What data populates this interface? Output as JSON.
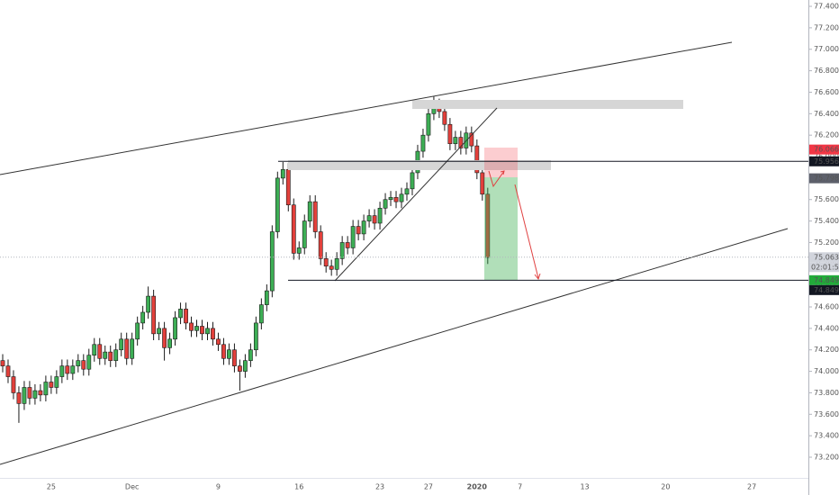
{
  "chart_data": {
    "type": "candlestick",
    "categories": [
      null,
      null,
      null,
      null,
      null,
      null,
      null,
      null,
      null,
      "25",
      null,
      null,
      null,
      null,
      null,
      null,
      null,
      null,
      null,
      null,
      null,
      null,
      null,
      null,
      "Dec",
      null,
      null,
      null,
      null,
      null,
      null,
      null,
      null,
      null,
      null,
      null,
      null,
      null,
      null,
      null,
      "9",
      null,
      null,
      null,
      null,
      null,
      null,
      null,
      null,
      null,
      null,
      null,
      null,
      null,
      null,
      "16",
      null,
      null,
      null,
      null,
      null,
      null,
      null,
      null,
      null,
      null,
      null,
      null,
      null,
      null,
      "23",
      null,
      null,
      null,
      null,
      null,
      null,
      null,
      null,
      "27",
      null,
      null,
      null,
      null,
      null,
      null,
      null,
      null,
      "2020",
      null,
      null,
      null,
      null,
      null,
      null,
      null,
      "7",
      null,
      null,
      null,
      null,
      null,
      null,
      null,
      null,
      null,
      null,
      null,
      "13",
      null,
      null,
      null,
      null,
      null,
      null,
      null,
      null,
      null,
      null,
      null,
      null,
      null,
      null,
      "20",
      null,
      null,
      null,
      null,
      null,
      null,
      null,
      null,
      null,
      null,
      null,
      null,
      null,
      null,
      null,
      "27",
      null,
      null,
      null,
      null,
      null,
      null,
      null,
      null,
      null,
      null
    ],
    "open": [
      74.1,
      74.05,
      73.95,
      73.8,
      73.7,
      73.85,
      73.75,
      73.82,
      73.78,
      73.9,
      73.85,
      73.95,
      74.05,
      73.98,
      74.05,
      74.1,
      74.02,
      74.15,
      74.25,
      74.12,
      74.18,
      74.1,
      74.2,
      74.3,
      74.12,
      74.3,
      74.45,
      74.55,
      74.7,
      74.35,
      74.4,
      74.22,
      74.3,
      74.5,
      74.58,
      74.45,
      74.38,
      74.42,
      74.35,
      74.4,
      74.3,
      74.25,
      74.12,
      74.2,
      74.05,
      74.0,
      74.1,
      74.2,
      74.45,
      74.62,
      74.75,
      75.3,
      75.8,
      75.88,
      75.55,
      75.1,
      75.15,
      75.4,
      75.58,
      75.3,
      75.05,
      74.98,
      74.95,
      75.05,
      75.2,
      75.15,
      75.35,
      75.28,
      75.4,
      75.45,
      75.38,
      75.52,
      75.6,
      75.62,
      75.58,
      75.65,
      75.7,
      75.85,
      76.05,
      76.2,
      76.4,
      76.48,
      76.42,
      76.3,
      76.12,
      76.18,
      76.08,
      76.22,
      76.1,
      75.85,
      75.65,
      null,
      null,
      null,
      null,
      null,
      null,
      null,
      null,
      null,
      null,
      null,
      null,
      null,
      null,
      null,
      null,
      null,
      null,
      null,
      null,
      null,
      null,
      null,
      null,
      null,
      null,
      null,
      null,
      null,
      null,
      null,
      null,
      null,
      null,
      null,
      null,
      null,
      null,
      null,
      null,
      null,
      null,
      null,
      null,
      null,
      null,
      null,
      null,
      null,
      null,
      null,
      null,
      null,
      null,
      null,
      null,
      null,
      null,
      null
    ],
    "high": [
      74.16,
      74.11,
      74.01,
      73.86,
      73.91,
      73.91,
      73.88,
      73.88,
      73.96,
      73.96,
      74.01,
      74.11,
      74.11,
      74.11,
      74.16,
      74.16,
      74.21,
      74.31,
      74.31,
      74.24,
      74.24,
      74.26,
      74.36,
      74.36,
      74.36,
      74.51,
      74.61,
      74.79,
      74.76,
      74.46,
      74.46,
      74.36,
      74.56,
      74.64,
      74.64,
      74.51,
      74.48,
      74.48,
      74.46,
      74.46,
      74.36,
      74.31,
      74.26,
      74.26,
      74.11,
      74.16,
      74.26,
      74.51,
      74.68,
      74.81,
      75.36,
      75.86,
      75.95,
      75.94,
      75.61,
      75.21,
      75.46,
      75.64,
      75.64,
      75.36,
      75.11,
      75.04,
      75.11,
      75.26,
      75.26,
      75.41,
      75.41,
      75.46,
      75.51,
      75.51,
      75.58,
      75.66,
      75.68,
      75.68,
      75.71,
      75.76,
      75.91,
      76.11,
      76.26,
      76.46,
      76.56,
      76.54,
      76.48,
      76.36,
      76.24,
      76.24,
      76.28,
      76.28,
      76.16,
      75.91,
      75.71,
      null,
      null,
      null,
      null,
      null,
      null,
      null,
      null,
      null,
      null,
      null,
      null,
      null,
      null,
      null,
      null,
      null,
      null,
      null,
      null,
      null,
      null,
      null,
      null,
      null,
      null,
      null,
      null,
      null,
      null,
      null,
      null,
      null,
      null,
      null,
      null,
      null,
      null,
      null,
      null,
      null,
      null,
      null,
      null,
      null,
      null,
      null,
      null,
      null,
      null,
      null,
      null,
      null,
      null,
      null,
      null,
      null,
      null,
      null
    ],
    "low": [
      73.99,
      73.89,
      73.74,
      73.52,
      73.64,
      73.69,
      73.69,
      73.72,
      73.72,
      73.79,
      73.79,
      73.89,
      73.92,
      73.92,
      73.99,
      73.96,
      73.96,
      74.09,
      74.06,
      74.06,
      74.04,
      74.04,
      74.14,
      74.06,
      74.06,
      74.24,
      74.39,
      74.49,
      74.29,
      74.29,
      74.1,
      74.16,
      74.24,
      74.44,
      74.39,
      74.32,
      74.32,
      74.29,
      74.29,
      74.24,
      74.19,
      74.06,
      74.06,
      73.99,
      73.82,
      73.94,
      74.04,
      74.14,
      74.39,
      74.56,
      74.69,
      75.24,
      75.74,
      75.49,
      75.04,
      75.04,
      75.09,
      75.34,
      75.24,
      74.99,
      74.92,
      74.89,
      74.89,
      74.99,
      75.09,
      75.09,
      75.22,
      75.22,
      75.34,
      75.32,
      75.32,
      75.46,
      75.54,
      75.52,
      75.52,
      75.59,
      75.64,
      75.79,
      75.99,
      76.14,
      76.34,
      76.36,
      76.24,
      76.06,
      76.06,
      76.02,
      76.02,
      76.04,
      75.79,
      75.59,
      75.0,
      null,
      null,
      null,
      null,
      null,
      null,
      null,
      null,
      null,
      null,
      null,
      null,
      null,
      null,
      null,
      null,
      null,
      null,
      null,
      null,
      null,
      null,
      null,
      null,
      null,
      null,
      null,
      null,
      null,
      null,
      null,
      null,
      null,
      null,
      null,
      null,
      null,
      null,
      null,
      null,
      null,
      null,
      null,
      null,
      null,
      null,
      null,
      null,
      null,
      null,
      null,
      null,
      null,
      null,
      null,
      null,
      null,
      null,
      null
    ],
    "close": [
      74.05,
      73.95,
      73.8,
      73.7,
      73.85,
      73.75,
      73.82,
      73.78,
      73.9,
      73.85,
      73.95,
      74.05,
      73.98,
      74.05,
      74.1,
      74.02,
      74.15,
      74.25,
      74.12,
      74.18,
      74.1,
      74.2,
      74.3,
      74.12,
      74.3,
      74.45,
      74.55,
      74.7,
      74.35,
      74.4,
      74.22,
      74.3,
      74.5,
      74.58,
      74.45,
      74.38,
      74.42,
      74.35,
      74.4,
      74.3,
      74.25,
      74.12,
      74.2,
      74.05,
      74.0,
      74.1,
      74.2,
      74.45,
      74.62,
      74.75,
      75.3,
      75.8,
      75.88,
      75.55,
      75.1,
      75.15,
      75.4,
      75.58,
      75.3,
      75.05,
      74.98,
      74.95,
      75.05,
      75.2,
      75.15,
      75.35,
      75.28,
      75.4,
      75.45,
      75.38,
      75.52,
      75.6,
      75.62,
      75.58,
      75.65,
      75.7,
      75.85,
      76.05,
      76.2,
      76.4,
      76.48,
      76.42,
      76.3,
      76.12,
      76.18,
      76.08,
      76.22,
      76.1,
      75.85,
      75.65,
      75.06,
      null,
      null,
      null,
      null,
      null,
      null,
      null,
      null,
      null,
      null,
      null,
      null,
      null,
      null,
      null,
      null,
      null,
      null,
      null,
      null,
      null,
      null,
      null,
      null,
      null,
      null,
      null,
      null,
      null,
      null,
      null,
      null,
      null,
      null,
      null,
      null,
      null,
      null,
      null,
      null,
      null,
      null,
      null,
      null,
      null,
      null,
      null,
      null,
      null,
      null,
      null,
      null,
      null,
      null,
      null,
      null,
      null,
      null,
      null
    ],
    "up_color": "#3dae55",
    "down_color": "#e2403b",
    "ylim": [
      72.848,
      77.459
    ],
    "yticks": [
      {
        "value": 73.2,
        "label": "73.200"
      },
      {
        "value": 73.4,
        "label": "73.400"
      },
      {
        "value": 73.6,
        "label": "73.600"
      },
      {
        "value": 73.8,
        "label": "73.800"
      },
      {
        "value": 74.0,
        "label": "74.000"
      },
      {
        "value": 74.2,
        "label": "74.200"
      },
      {
        "value": 74.4,
        "label": "74.400"
      },
      {
        "value": 74.6,
        "label": "74.600"
      },
      {
        "value": 74.8,
        "label": "74.800"
      },
      {
        "value": 75.0,
        "label": "75.000"
      },
      {
        "value": 75.2,
        "label": "75.200"
      },
      {
        "value": 75.4,
        "label": "75.400"
      },
      {
        "value": 75.6,
        "label": "75.600"
      },
      {
        "value": 75.8,
        "label": "75.800"
      },
      {
        "value": 76.0,
        "label": "76.000"
      },
      {
        "value": 76.2,
        "label": "76.200"
      },
      {
        "value": 76.4,
        "label": "76.400"
      },
      {
        "value": 76.6,
        "label": "76.600"
      },
      {
        "value": 76.8,
        "label": "76.800"
      },
      {
        "value": 77.0,
        "label": "77.000"
      },
      {
        "value": 77.2,
        "label": "77.200"
      },
      {
        "value": 77.4,
        "label": "77.400"
      }
    ],
    "price_labels": [
      {
        "value": 76.066,
        "label": "76.066",
        "color": "#f23645"
      },
      {
        "value": 75.956,
        "label": "75.956",
        "color": "#131722",
        "line": true
      },
      {
        "value": 75.798,
        "label": "75.798",
        "color": "#5d606b"
      },
      {
        "value": 75.063,
        "label": "75.063",
        "color": "#d1d4dc",
        "dotted": true
      },
      {
        "value": 74.849,
        "label": "74.849",
        "color": "#22ab3a"
      },
      {
        "value": 74.849,
        "label": "74.849",
        "color": "#131722",
        "line": true
      }
    ],
    "countdown": "02:01:51"
  }
}
